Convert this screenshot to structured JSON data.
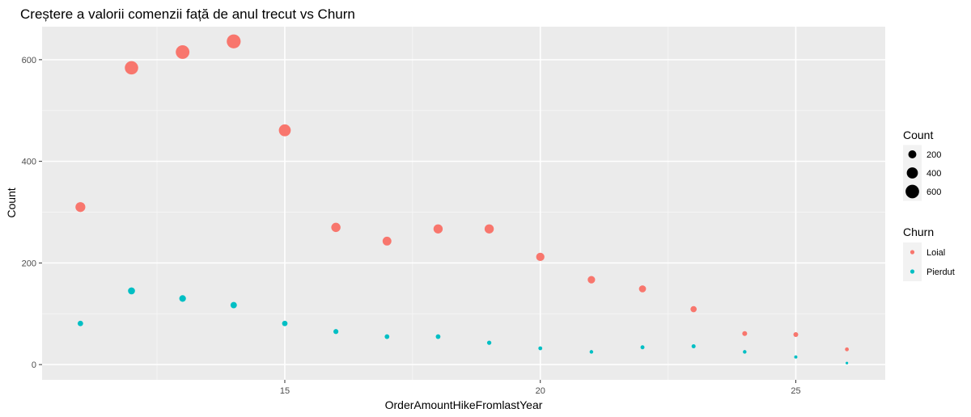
{
  "chart_data": {
    "type": "scatter",
    "title": "Creștere a valorii comenzii față de anul trecut vs Churn",
    "xlabel": "OrderAmountHikeFromlastYear",
    "ylabel": "Count",
    "xlim": [
      10.25,
      26.75
    ],
    "ylim": [
      -30,
      665
    ],
    "x_ticks": [
      15,
      20,
      25
    ],
    "y_ticks": [
      0,
      200,
      400,
      600
    ],
    "grid": true,
    "legend_position": "right",
    "size_legend": {
      "title": "Count",
      "entries": [
        200,
        400,
        600
      ]
    },
    "color_legend": {
      "title": "Churn",
      "entries": [
        {
          "name": "Loial",
          "color": "#F8766D"
        },
        {
          "name": "Pierdut",
          "color": "#00BFC4"
        }
      ]
    },
    "series": [
      {
        "name": "Loial",
        "color": "#F8766D",
        "x": [
          11,
          12,
          13,
          14,
          15,
          16,
          17,
          18,
          19,
          20,
          21,
          22,
          23,
          24,
          25,
          26
        ],
        "y": [
          310,
          584,
          615,
          636,
          461,
          270,
          243,
          267,
          267,
          212,
          167,
          149,
          109,
          61,
          59,
          30
        ]
      },
      {
        "name": "Pierdut",
        "color": "#00BFC4",
        "x": [
          11,
          12,
          13,
          14,
          15,
          16,
          17,
          18,
          19,
          20,
          21,
          22,
          23,
          24,
          25,
          26
        ],
        "y": [
          81,
          145,
          130,
          117,
          81,
          65,
          55,
          55,
          43,
          32,
          25,
          34,
          36,
          25,
          15,
          3
        ]
      }
    ]
  }
}
